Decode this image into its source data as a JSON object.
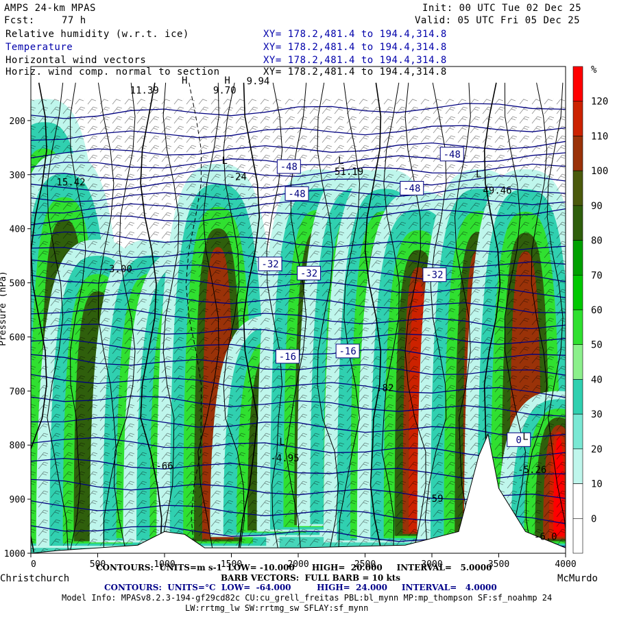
{
  "header": {
    "model": "AMPS 24-km MPAS",
    "fcst_label": "Fcst:",
    "fcst_value": "77 h",
    "init": "Init: 00 UTC Tue 02 Dec 25",
    "valid": "Valid: 05 UTC Fri 05 Dec 25",
    "fields": [
      {
        "name": "Relative humidity (w.r.t. ice)",
        "xy": "XY= 178.2,481.4 to 194.4,314.8",
        "color": "#000000"
      },
      {
        "name": "Temperature",
        "xy": "XY= 178.2,481.4 to 194.4,314.8",
        "color": "#0000aa"
      },
      {
        "name": "Horizontal wind vectors",
        "xy": "XY= 178.2,481.4 to 194.4,314.8",
        "color": "#000000"
      },
      {
        "name": "Horiz. wind comp. normal to section",
        "xy": "XY= 178.2,481.4 to 194.4,314.8",
        "color": "#000000"
      }
    ]
  },
  "chart_data": {
    "type": "heatmap",
    "title": "Relative humidity (w.r.t. ice)",
    "xlabel_left": "Christchurch",
    "xlabel_right": "McMurdo",
    "ylabel": "Pressure (hPa)",
    "x_ticks": [
      "0",
      "500",
      "1000",
      "1500",
      "2000",
      "2500",
      "3000",
      "3500",
      "4000"
    ],
    "x_range": [
      0,
      4000
    ],
    "y_ticks": [
      "200",
      "300",
      "400",
      "500",
      "600",
      "700",
      "800",
      "900",
      "1000"
    ],
    "y_range": [
      1000,
      100
    ],
    "colorbar": {
      "unit": "%",
      "levels": [
        "120",
        "110",
        "100",
        "90",
        "80",
        "70",
        "60",
        "50",
        "40",
        "30",
        "20",
        "10",
        "0"
      ],
      "colors": [
        "#ff0000",
        "#dd2a00",
        "#b02a0a",
        "#4a5a0e",
        "#2d5a0a",
        "#00aa00",
        "#00d200",
        "#60f060",
        "#a8f0a8",
        "#30d0b0",
        "#70e8d0",
        "#b0f4e8",
        "#ffffff",
        "#ffffff"
      ]
    },
    "rh_columns": [
      {
        "x": 100,
        "p_top": 160,
        "p_bot": 980,
        "max": 120
      },
      {
        "x": 250,
        "p_top": 260,
        "p_bot": 990,
        "max": 100
      },
      {
        "x": 500,
        "p_top": 420,
        "p_bot": 990,
        "max": 100
      },
      {
        "x": 900,
        "p_top": 420,
        "p_bot": 980,
        "max": 115
      },
      {
        "x": 1150,
        "p_top": 440,
        "p_bot": 980,
        "max": 100
      },
      {
        "x": 1400,
        "p_top": 280,
        "p_bot": 990,
        "max": 105
      },
      {
        "x": 1800,
        "p_top": 560,
        "p_bot": 970,
        "max": 95
      },
      {
        "x": 2150,
        "p_top": 290,
        "p_bot": 960,
        "max": 118
      },
      {
        "x": 2450,
        "p_top": 290,
        "p_bot": 950,
        "max": 110
      },
      {
        "x": 2650,
        "p_top": 290,
        "p_bot": 980,
        "max": 112
      },
      {
        "x": 2900,
        "p_top": 330,
        "p_bot": 980,
        "max": 115
      },
      {
        "x": 3350,
        "p_top": 290,
        "p_bot": 980,
        "max": 118
      },
      {
        "x": 3700,
        "p_top": 290,
        "p_bot": 990,
        "max": 105
      },
      {
        "x": 3950,
        "p_top": 700,
        "p_bot": 990,
        "max": 118
      }
    ],
    "temperature_labels": [
      {
        "text": "-48",
        "x": 1930,
        "p": 285
      },
      {
        "text": "-48",
        "x": 1990,
        "p": 335
      },
      {
        "text": "-48",
        "x": 2850,
        "p": 325
      },
      {
        "text": "-48",
        "x": 3150,
        "p": 262
      },
      {
        "text": "-32",
        "x": 1790,
        "p": 465
      },
      {
        "text": "-32",
        "x": 2080,
        "p": 482
      },
      {
        "text": "-32",
        "x": 3020,
        "p": 485
      },
      {
        "text": "-16",
        "x": 1920,
        "p": 636
      },
      {
        "text": "-16",
        "x": 2370,
        "p": 626
      },
      {
        "text": "0",
        "x": 3650,
        "p": 790
      }
    ],
    "annotations": [
      {
        "text": "L",
        "x": 2320,
        "p": 280
      },
      {
        "text": "51.19",
        "x": 2380,
        "p": 300
      },
      {
        "text": "L",
        "x": 3350,
        "p": 305
      },
      {
        "text": "49.46",
        "x": 3490,
        "p": 335
      },
      {
        "text": "9.94",
        "x": 1700,
        "p": 133
      },
      {
        "text": "9.70",
        "x": 1450,
        "p": 150
      },
      {
        "text": "11.39",
        "x": 850,
        "p": 150
      },
      {
        "text": "H",
        "x": 1470,
        "p": 132
      },
      {
        "text": "H",
        "x": 1150,
        "p": 132
      },
      {
        "text": "L",
        "x": 1450,
        "p": 280
      },
      {
        "text": "-24",
        "x": 1550,
        "p": 310
      },
      {
        "text": "-4.95",
        "x": 1900,
        "p": 830
      },
      {
        "text": "L",
        "x": 1880,
        "p": 800
      },
      {
        "text": "-3.00",
        "x": 650,
        "p": 480
      },
      {
        "text": "L",
        "x": 3700,
        "p": 790
      },
      {
        "text": "-5.26",
        "x": 3750,
        "p": 852
      },
      {
        "text": "-66",
        "x": 1000,
        "p": 845
      },
      {
        "text": ".82",
        "x": 2650,
        "p": 700
      },
      {
        "text": "-59",
        "x": 3020,
        "p": 905
      },
      {
        "text": "-6.0",
        "x": 3850,
        "p": 975
      },
      {
        "text": "15.42",
        "x": 300,
        "p": 320
      }
    ]
  },
  "footer": {
    "line1": "CONTOURS:  UNITS=m s-1  LOW= -10.000      HIGH=  20.000     INTERVAL=   5.0000",
    "line2": "BARB VECTORS:  FULL BARB = 10 kts",
    "line3": "CONTOURS:  UNITS=°C  LOW=  -64.000         HIGH=  24.000     INTERVAL=   4.0000",
    "line4": "Model Info: MPASv8.2.3-194-gf29cd82c CU:cu_grell_freitas PBL:bl_mynn MP:mp_thompson SF:sf_noahmp 24",
    "line5": "LW:rrtmg_lw SW:rrtmg_sw SFLAY:sf_mynn"
  }
}
